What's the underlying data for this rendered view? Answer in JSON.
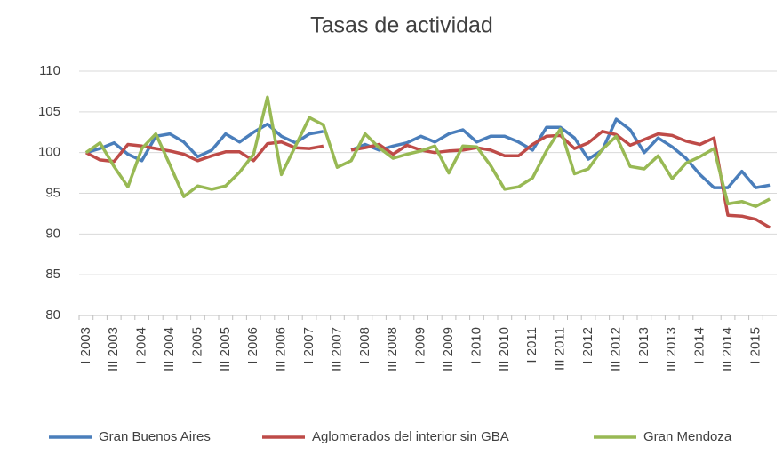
{
  "chart_data": {
    "type": "line",
    "title": "Tasas de actividad",
    "categories": [
      "I 2003",
      null,
      "III 2003",
      null,
      "I 2004",
      null,
      "III 2004",
      null,
      "I 2005",
      null,
      "III 2005",
      null,
      "I 2006",
      null,
      "III 2006",
      null,
      "I 2007",
      null,
      "III 2007",
      null,
      "I 2008",
      null,
      "III 2008",
      null,
      "I 2009",
      null,
      "III 2009",
      null,
      "I 2010",
      null,
      "III 2010",
      null,
      "I 2011",
      null,
      "III 2011",
      null,
      "I 2012",
      null,
      "III 2012",
      null,
      "I 2013",
      null,
      "III 2013",
      null,
      "I 2014",
      null,
      "III 2014",
      null,
      "I 2015",
      null
    ],
    "series": [
      {
        "name": "Gran Buenos Aires",
        "color": "#4a7ebb",
        "values": [
          100,
          100.5,
          101.2,
          99.8,
          99,
          102,
          102.3,
          101.3,
          99.5,
          100.3,
          102.3,
          101.3,
          102.5,
          103.5,
          102,
          101.2,
          102.3,
          102.6,
          null,
          100.3,
          101,
          100.3,
          100.8,
          101.2,
          102,
          101.3,
          102.3,
          102.8,
          101.3,
          102,
          102,
          101.3,
          100.3,
          103.1,
          103.1,
          101.8,
          99.2,
          100.3,
          104.1,
          102.8,
          100,
          101.8,
          100.7,
          99.3,
          97.3,
          95.7,
          95.7,
          97.7,
          95.7,
          96
        ]
      },
      {
        "name": "Aglomerados del interior sin GBA",
        "color": "#be4b48",
        "values": [
          100,
          99.1,
          98.9,
          101,
          100.8,
          100.5,
          100.2,
          99.8,
          99,
          99.6,
          100.1,
          100.1,
          99,
          101.1,
          101.3,
          100.6,
          100.5,
          100.8,
          null,
          100.3,
          100.6,
          101,
          99.8,
          100.9,
          100.3,
          100,
          100.2,
          100.3,
          100.6,
          100.3,
          99.6,
          99.6,
          101,
          102,
          102.1,
          100.5,
          101.2,
          102.6,
          102.2,
          100.9,
          101.6,
          102.3,
          102.1,
          101.4,
          101,
          101.8,
          92.3,
          92.2,
          91.8,
          90.8
        ]
      },
      {
        "name": "Gran Mendoza",
        "color": "#98b954",
        "values": [
          100,
          101.2,
          98.3,
          95.8,
          100.5,
          102.3,
          98.5,
          94.6,
          95.9,
          95.5,
          95.9,
          97.6,
          99.8,
          106.8,
          97.3,
          100.8,
          104.3,
          103.4,
          98.2,
          99,
          102.3,
          100.6,
          99.3,
          99.8,
          100.2,
          100.8,
          97.5,
          100.8,
          100.7,
          98.4,
          95.5,
          95.8,
          96.9,
          100.2,
          102.9,
          97.4,
          98,
          100.4,
          102,
          98.3,
          98,
          99.6,
          96.8,
          98.7,
          99.5,
          100.5,
          93.7,
          94,
          93.4,
          94.3
        ]
      }
    ],
    "ylim": [
      80,
      110
    ],
    "yticks": [
      80,
      85,
      90,
      95,
      100,
      105,
      110
    ],
    "grid": true,
    "legend": "bottom"
  }
}
